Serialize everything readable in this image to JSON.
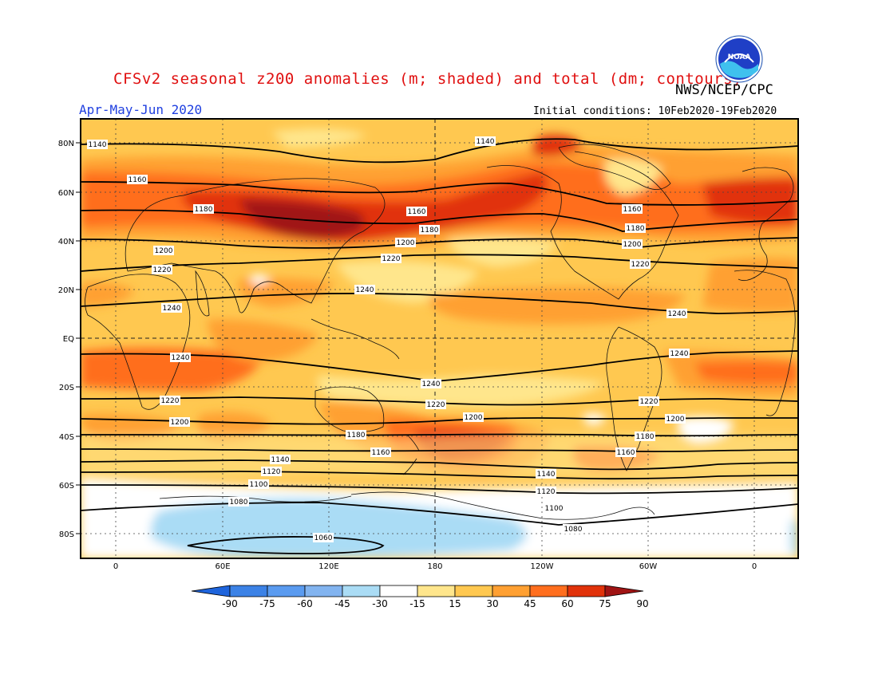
{
  "title": "CFSv2 seasonal z200 anomalies (m; shaded) and total (dm; contours)",
  "agency": "NWS/NCEP/CPC",
  "logo_text": "NOAA",
  "period": "Apr-May-Jun 2020",
  "initial_conditions": "Initial conditions: 10Feb2020-19Feb2020",
  "lat_labels": [
    "80N",
    "60N",
    "40N",
    "20N",
    "EQ",
    "20S",
    "40S",
    "60S",
    "80S"
  ],
  "lon_labels": [
    "0",
    "60E",
    "120E",
    "180",
    "120W",
    "60W",
    "0"
  ],
  "contour_labels": [
    "1140",
    "1160",
    "1180",
    "1200",
    "1220",
    "1240",
    "1240",
    "1220",
    "1200",
    "1180",
    "1160",
    "1140",
    "1120",
    "1100",
    "1080",
    "1060"
  ],
  "colorbar": {
    "ticks": [
      "-90",
      "-75",
      "-60",
      "-45",
      "-30",
      "-15",
      "15",
      "30",
      "45",
      "60",
      "75",
      "90"
    ],
    "colors": [
      "#1e64dc",
      "#3c82e6",
      "#5a9bf0",
      "#82b4f0",
      "#aadcf5",
      "#ffffff",
      "#ffe68c",
      "#ffc850",
      "#ffa032",
      "#ff6e1e",
      "#e1320a",
      "#a01414"
    ]
  }
}
